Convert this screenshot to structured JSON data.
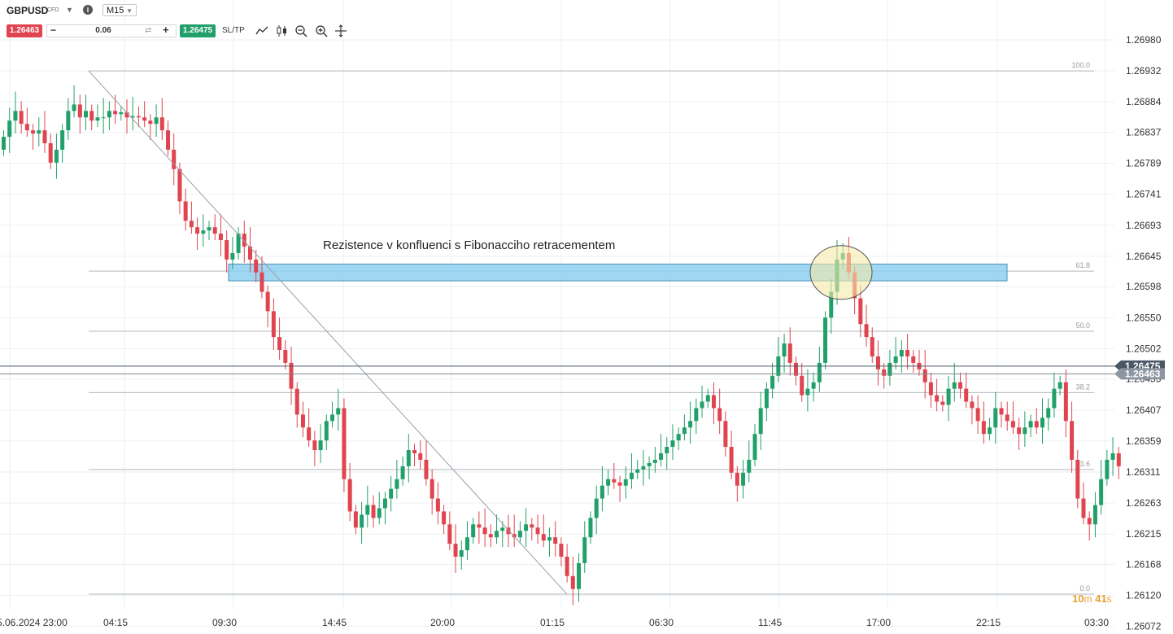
{
  "toolbar": {
    "symbol": "GBPUSD",
    "symbol_type": "CFD",
    "timeframe": "M15",
    "sell_price": "1.26463",
    "buy_price": "1.26475",
    "quantity": "0.06",
    "sltp_label": "SL/TP",
    "icons": [
      "line-chart-icon",
      "candlestick-icon",
      "zoom-out-icon",
      "zoom-in-icon",
      "crosshair-icon"
    ]
  },
  "countdown": {
    "minutes": "10",
    "m_unit": "m",
    "seconds": "41",
    "s_unit": "s"
  },
  "annotation": {
    "text": "Rezistence v konfluenci s Fibonacciho retracementem"
  },
  "colors": {
    "bull": "#22a06b",
    "bear": "#e0454f",
    "zone": "#8ecff0",
    "highlight": "#f5e9a8",
    "grid": "#eceff3"
  },
  "chart_data": {
    "type": "candlestick",
    "symbol": "GBPUSD",
    "timeframe": "M15",
    "y_ticks": [
      "1.26980",
      "1.26932",
      "1.26884",
      "1.26837",
      "1.26789",
      "1.26741",
      "1.26693",
      "1.26645",
      "1.26598",
      "1.26550",
      "1.26502",
      "1.26455",
      "1.26407",
      "1.26359",
      "1.26311",
      "1.26263",
      "1.26215",
      "1.26168",
      "1.26120",
      "1.26072"
    ],
    "x_ticks": [
      "5.06.2024 23:00",
      "04:15",
      "09:30",
      "14:45",
      "20:00",
      "01:15",
      "06:30",
      "11:45",
      "17:00",
      "22:15",
      "03:30"
    ],
    "ylim": [
      1.2605,
      1.2701
    ],
    "current_ask": 1.26475,
    "current_bid": 1.26463,
    "ask_label": "1.26475",
    "bid_label": "1.26463",
    "fib_levels": [
      {
        "label": "100.0",
        "price": 1.26932
      },
      {
        "label": "61.8",
        "price": 1.26622
      },
      {
        "label": "50.0",
        "price": 1.26529
      },
      {
        "label": "38.2",
        "price": 1.26434
      },
      {
        "label": "23.6",
        "price": 1.26315
      },
      {
        "label": "0.0",
        "price": 1.26122
      }
    ],
    "trendlines": [
      {
        "from": [
          1.26932,
          0.0
        ],
        "to": [
          1.26122,
          1.0
        ]
      }
    ],
    "resistance_zone": {
      "top": 1.26633,
      "bottom": 1.26607
    },
    "closes": [
      1.2683,
      1.26855,
      1.2687,
      1.2685,
      1.2684,
      1.26835,
      1.2684,
      1.2682,
      1.2679,
      1.2681,
      1.2684,
      1.2687,
      1.2688,
      1.2686,
      1.2687,
      1.26855,
      1.2686,
      1.2686,
      1.2687,
      1.26865,
      1.26868,
      1.2686,
      1.26862,
      1.2686,
      1.26855,
      1.2685,
      1.2686,
      1.2684,
      1.2681,
      1.2678,
      1.2673,
      1.267,
      1.2669,
      1.2668,
      1.26685,
      1.2669,
      1.2668,
      1.2667,
      1.2664,
      1.2665,
      1.2668,
      1.2666,
      1.2664,
      1.2662,
      1.2659,
      1.2656,
      1.2652,
      1.265,
      1.2648,
      1.2644,
      1.264,
      1.2638,
      1.2636,
      1.26345,
      1.2636,
      1.2639,
      1.264,
      1.2641,
      1.263,
      1.2625,
      1.26225,
      1.26245,
      1.2626,
      1.2624,
      1.26255,
      1.2627,
      1.26285,
      1.263,
      1.2632,
      1.26345,
      1.2634,
      1.2633,
      1.263,
      1.2627,
      1.2625,
      1.2623,
      1.262,
      1.2618,
      1.2619,
      1.2621,
      1.2623,
      1.26225,
      1.26215,
      1.2621,
      1.2622,
      1.26225,
      1.26215,
      1.2621,
      1.2622,
      1.2623,
      1.26225,
      1.26215,
      1.26205,
      1.2621,
      1.262,
      1.2618,
      1.2615,
      1.2613,
      1.2617,
      1.2621,
      1.2624,
      1.2627,
      1.2629,
      1.263,
      1.26295,
      1.2629,
      1.263,
      1.2631,
      1.26315,
      1.2632,
      1.26325,
      1.2633,
      1.2634,
      1.2635,
      1.2636,
      1.2637,
      1.2638,
      1.2639,
      1.2641,
      1.2642,
      1.2643,
      1.2641,
      1.2639,
      1.2635,
      1.2631,
      1.2629,
      1.2631,
      1.2633,
      1.2637,
      1.2641,
      1.2644,
      1.2646,
      1.2649,
      1.2651,
      1.2648,
      1.2646,
      1.2643,
      1.2644,
      1.2645,
      1.2648,
      1.2655,
      1.2659,
      1.2664,
      1.2665,
      1.2662,
      1.2658,
      1.2654,
      1.2652,
      1.2649,
      1.2647,
      1.2646,
      1.2648,
      1.2649,
      1.265,
      1.2649,
      1.2648,
      1.2647,
      1.2645,
      1.2643,
      1.2642,
      1.26415,
      1.2644,
      1.2645,
      1.2644,
      1.2642,
      1.2641,
      1.2639,
      1.2637,
      1.2638,
      1.2641,
      1.264,
      1.2639,
      1.2638,
      1.2637,
      1.2638,
      1.2639,
      1.2638,
      1.26395,
      1.2641,
      1.2644,
      1.2645,
      1.2639,
      1.2633,
      1.2627,
      1.2624,
      1.2623,
      1.2626,
      1.263,
      1.2633,
      1.2634,
      1.2632
    ]
  }
}
